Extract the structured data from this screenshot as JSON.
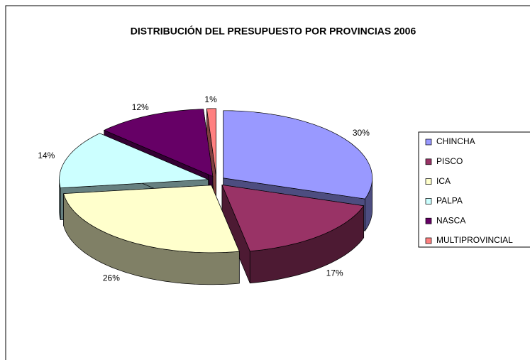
{
  "chart_data": {
    "type": "pie",
    "title": "DISTRIBUCIÓN DEL PRESUPUESTO POR PROVINCIAS 2006",
    "categories": [
      "CHINCHA",
      "PISCO",
      "ICA",
      "PALPA",
      "NASCA",
      "MULTIPROVINCIAL"
    ],
    "values": [
      30,
      17,
      26,
      14,
      12,
      1
    ],
    "value_labels": [
      "30%",
      "17%",
      "26%",
      "14%",
      "12%",
      "1%"
    ],
    "colors": [
      "#9999ff",
      "#993366",
      "#ffffcc",
      "#ccffff",
      "#660066",
      "#ff8080"
    ],
    "legend": "right"
  }
}
